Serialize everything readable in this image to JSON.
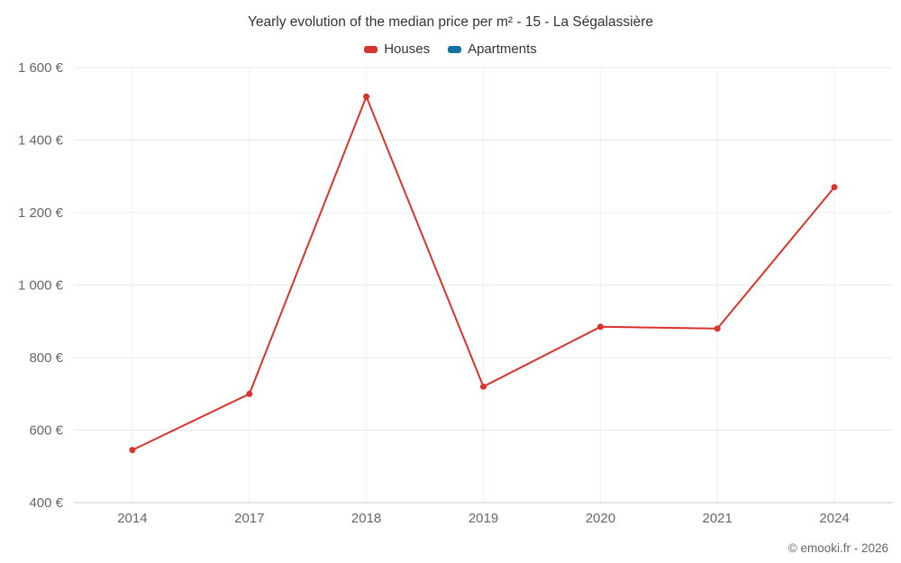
{
  "title": "Yearly evolution of the median price per m² - 15 - La Ségalassière",
  "footer": "© emooki.fr - 2026",
  "legend": [
    {
      "label": "Houses",
      "color": "#d9342b"
    },
    {
      "label": "Apartments",
      "color": "#1272a2"
    }
  ],
  "chart_data": {
    "type": "line",
    "title": "Yearly evolution of the median price per m² - 15 - La Ségalassière",
    "categories": [
      "2014",
      "2017",
      "2018",
      "2019",
      "2020",
      "2021",
      "2024"
    ],
    "series": [
      {
        "name": "Houses",
        "color": "#d9342b",
        "values": [
          545,
          700,
          1520,
          720,
          885,
          880,
          1270
        ]
      },
      {
        "name": "Apartments",
        "color": "#1272a2",
        "values": []
      }
    ],
    "xlabel": "",
    "ylabel": "",
    "ylim": [
      400,
      1600
    ],
    "yticks": [
      400,
      600,
      800,
      1000,
      1200,
      1400,
      1600
    ],
    "ytick_suffix": " €",
    "grid": true,
    "legend_position": "top",
    "colors": {
      "gridline": "#e8e8e8",
      "vertical_gridline": "#f1f1f1",
      "axis_line": "#cccccc",
      "tick_label": "#666666",
      "title_text": "#333333"
    }
  }
}
